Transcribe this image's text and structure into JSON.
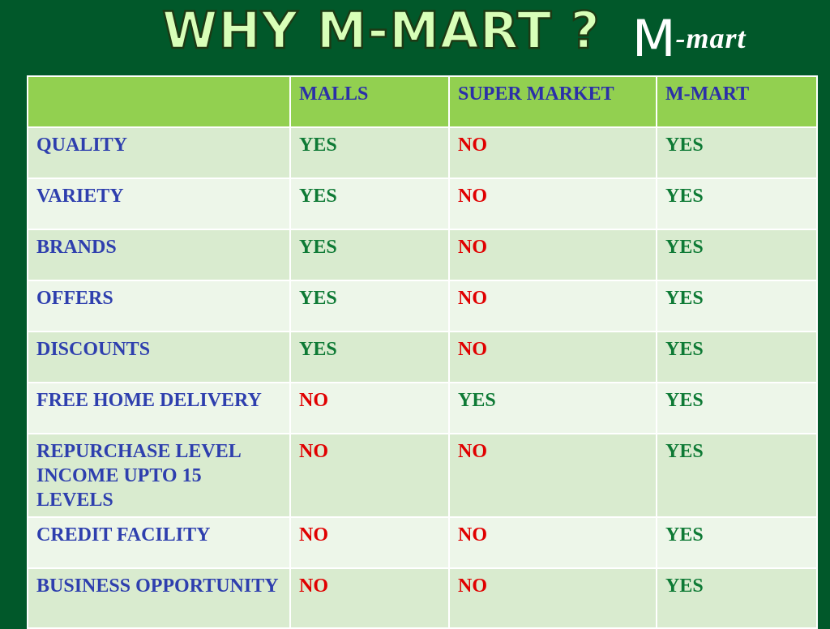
{
  "slide": {
    "title": "WHY M-MART ?",
    "logo": {
      "letter": "M",
      "rest": "-mart"
    }
  },
  "table": {
    "headers": [
      "",
      "MALLS",
      "SUPER MARKET",
      "M-MART"
    ],
    "rows": [
      {
        "feature": "QUALITY",
        "values": [
          "YES",
          "NO",
          "YES"
        ]
      },
      {
        "feature": "VARIETY",
        "values": [
          "YES",
          "NO",
          "YES"
        ]
      },
      {
        "feature": "BRANDS",
        "values": [
          "YES",
          "NO",
          "YES"
        ]
      },
      {
        "feature": "OFFERS",
        "values": [
          "YES",
          "NO",
          "YES"
        ]
      },
      {
        "feature": "DISCOUNTS",
        "values": [
          "YES",
          "NO",
          "YES"
        ]
      },
      {
        "feature": "FREE HOME DELIVERY",
        "values": [
          "NO",
          "YES",
          "YES"
        ]
      },
      {
        "feature": "REPURCHASE LEVEL INCOME UPTO 15 LEVELS",
        "values": [
          "NO",
          "NO",
          "YES"
        ]
      },
      {
        "feature": "CREDIT  FACILITY",
        "values": [
          "NO",
          "NO",
          "YES"
        ]
      },
      {
        "feature": "BUSINESS OPPORTUNITY",
        "values": [
          "NO",
          "NO",
          "YES"
        ]
      }
    ]
  },
  "colors": {
    "background": "#01582a",
    "header_bg": "#92d050",
    "row_dark": "#d9ebcf",
    "row_light": "#edf6e9",
    "feature_text": "#2e3fae",
    "yes_text": "#0e7a35",
    "no_text": "#e00000"
  }
}
